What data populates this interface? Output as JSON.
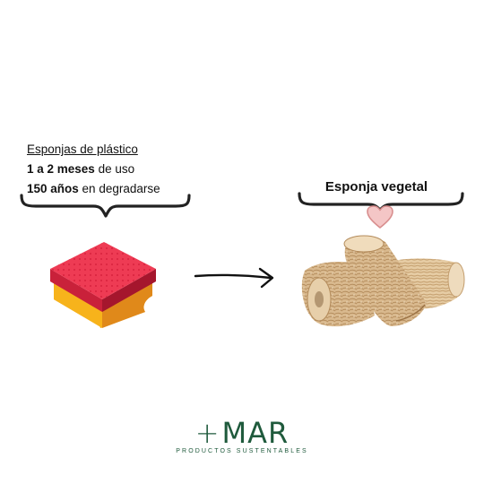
{
  "plastic": {
    "heading": "Esponjas de plástico",
    "usage_bold": "1 a 2 meses",
    "usage_rest": " de uso",
    "degrade_bold": "150 años",
    "degrade_rest": " en degradarse"
  },
  "vegetal": {
    "title": "Esponja vegetal"
  },
  "brand": {
    "plus": "+",
    "name": "MAR",
    "tagline": "PRODUCTOS SUSTENTABLES",
    "color": "#1f5a3c"
  },
  "icons": [
    "left-brace-icon",
    "right-brace-icon",
    "heart-icon",
    "arrow-right-icon",
    "plastic-sponge-icon",
    "loofah-sponge-icon"
  ]
}
